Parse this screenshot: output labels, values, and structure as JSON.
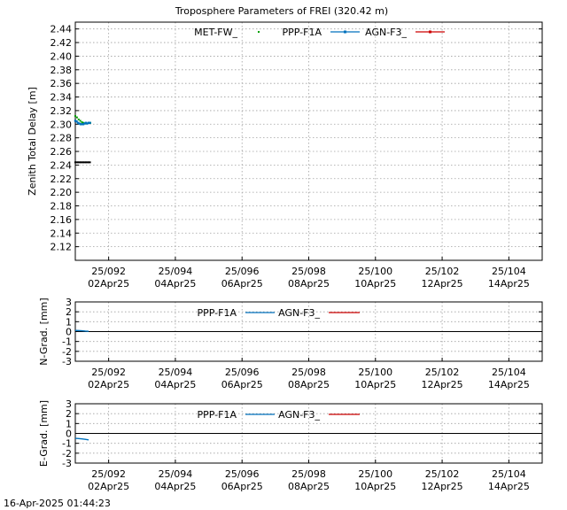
{
  "title": "Troposphere Parameters of FREI (320.42 m)",
  "timestamp": "16-Apr-2025 01:44:23",
  "colors": {
    "met": "#00a000",
    "ppp": "#0072bd",
    "agn": "#cc0000",
    "zero": "#000000"
  },
  "x_ticks": [
    {
      "doy": 92,
      "top": "25/092",
      "bottom": "02Apr25"
    },
    {
      "doy": 94,
      "top": "25/094",
      "bottom": "04Apr25"
    },
    {
      "doy": 96,
      "top": "25/096",
      "bottom": "06Apr25"
    },
    {
      "doy": 98,
      "top": "25/098",
      "bottom": "08Apr25"
    },
    {
      "doy": 100,
      "top": "25/100",
      "bottom": "10Apr25"
    },
    {
      "doy": 102,
      "top": "25/102",
      "bottom": "12Apr25"
    },
    {
      "doy": 104,
      "top": "25/104",
      "bottom": "14Apr25"
    }
  ],
  "chart_data": [
    {
      "type": "line",
      "ylabel": "Zenith Total Delay [m]",
      "xlim": [
        91,
        105
      ],
      "ylim": [
        2.1,
        2.45
      ],
      "yticks": [
        "2.12",
        "2.14",
        "2.16",
        "2.18",
        "2.20",
        "2.22",
        "2.24",
        "2.26",
        "2.28",
        "2.30",
        "2.32",
        "2.34",
        "2.36",
        "2.38",
        "2.40",
        "2.42",
        "2.44"
      ],
      "grid": true,
      "legend": "top",
      "series": [
        {
          "name": "MET-FW_",
          "style": "dots",
          "color": "#00a000",
          "x": [
            91.0,
            91.05,
            91.1,
            91.15,
            91.2,
            91.25,
            91.3,
            91.35,
            91.4,
            91.45
          ],
          "y": [
            2.312,
            2.31,
            2.307,
            2.305,
            2.303,
            2.302,
            2.301,
            2.301,
            2.302,
            2.302
          ]
        },
        {
          "name": "",
          "style": "black-dots",
          "color": "#000000",
          "x": [
            91.0,
            91.04,
            91.08,
            91.12,
            91.16,
            91.2,
            91.24,
            91.28,
            91.32,
            91.36,
            91.4,
            91.44
          ],
          "y": [
            2.244,
            2.244,
            2.244,
            2.244,
            2.244,
            2.244,
            2.244,
            2.244,
            2.244,
            2.244,
            2.244,
            2.244
          ]
        },
        {
          "name": "PPP-F1A",
          "style": "line-marker",
          "color": "#0072bd",
          "x": [
            91.0,
            91.04,
            91.08,
            91.12,
            91.16,
            91.2,
            91.24,
            91.28,
            91.32,
            91.36,
            91.4,
            91.44
          ],
          "y": [
            2.305,
            2.304,
            2.302,
            2.301,
            2.3,
            2.3,
            2.3,
            2.301,
            2.302,
            2.301,
            2.302,
            2.302
          ]
        },
        {
          "name": "AGN-F3_",
          "style": "line-marker",
          "color": "#cc0000",
          "x": [],
          "y": []
        }
      ]
    },
    {
      "type": "line",
      "ylabel": "N-Grad. [mm]",
      "xlim": [
        91,
        105
      ],
      "ylim": [
        -3,
        3
      ],
      "yticks": [
        "3",
        "2",
        "1",
        "0",
        "-1",
        "-2",
        "-3"
      ],
      "grid": true,
      "legend": "top",
      "series": [
        {
          "name": "PPP-F1A",
          "color": "#0072bd",
          "x": [
            91.0,
            91.1,
            91.2,
            91.3,
            91.4
          ],
          "y": [
            0.12,
            0.1,
            0.08,
            0.05,
            0.03
          ]
        },
        {
          "name": "AGN-F3_",
          "color": "#cc0000",
          "x": [],
          "y": []
        }
      ]
    },
    {
      "type": "line",
      "ylabel": "E-Grad. [mm]",
      "xlim": [
        91,
        105
      ],
      "ylim": [
        -3,
        3
      ],
      "yticks": [
        "3",
        "2",
        "1",
        "0",
        "-1",
        "-2",
        "-3"
      ],
      "grid": true,
      "legend": "top",
      "series": [
        {
          "name": "PPP-F1A",
          "color": "#0072bd",
          "x": [
            91.0,
            91.1,
            91.2,
            91.3,
            91.4
          ],
          "y": [
            -0.5,
            -0.52,
            -0.55,
            -0.6,
            -0.65
          ]
        },
        {
          "name": "AGN-F3_",
          "color": "#cc0000",
          "x": [],
          "y": []
        }
      ]
    }
  ]
}
